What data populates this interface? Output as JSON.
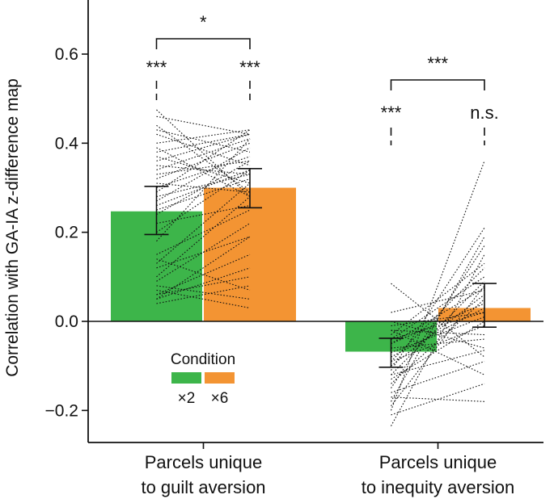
{
  "chart_data": {
    "type": "bar",
    "ylabel": "Correlation with GA-IA z-difference map",
    "ylim": [
      -0.27,
      0.72
    ],
    "yticks": [
      -0.2,
      0.0,
      0.2,
      0.4,
      0.6
    ],
    "ytick_labels": [
      "−0.2",
      "0.0",
      "0.2",
      "0.4",
      "0.6"
    ],
    "categories": [
      {
        "line1": "Parcels unique",
        "line2": "to guilt aversion"
      },
      {
        "line1": "Parcels unique",
        "line2": "to inequity aversion"
      }
    ],
    "legend": {
      "title": "Condition",
      "placement": "bottom-center",
      "entries": [
        {
          "label": "×2",
          "color": "#3db54a"
        },
        {
          "label": "×6",
          "color": "#f39433"
        }
      ]
    },
    "series": [
      {
        "name": "×2",
        "color": "#3db54a",
        "values": [
          0.247,
          -0.068
        ],
        "err_low": [
          0.195,
          -0.103
        ],
        "err_high": [
          0.303,
          -0.038
        ]
      },
      {
        "name": "×6",
        "color": "#f39433",
        "values": [
          0.3,
          0.03
        ],
        "err_low": [
          0.255,
          -0.013
        ],
        "err_high": [
          0.343,
          0.085
        ]
      }
    ],
    "subject_lines": [
      [
        [
          0.475,
          0.28
        ],
        [
          0.46,
          0.42
        ],
        [
          0.44,
          0.29
        ],
        [
          0.43,
          0.38
        ],
        [
          0.42,
          0.35
        ],
        [
          0.4,
          0.43
        ],
        [
          0.39,
          0.28
        ],
        [
          0.38,
          0.42
        ],
        [
          0.37,
          0.31
        ],
        [
          0.36,
          0.42
        ],
        [
          0.35,
          0.33
        ],
        [
          0.34,
          0.41
        ],
        [
          0.33,
          0.36
        ],
        [
          0.32,
          0.4
        ],
        [
          0.31,
          0.29
        ],
        [
          0.3,
          0.37
        ],
        [
          0.29,
          0.43
        ],
        [
          0.28,
          0.33
        ],
        [
          0.27,
          0.39
        ],
        [
          0.26,
          0.34
        ],
        [
          0.25,
          0.32
        ],
        [
          0.24,
          0.36
        ],
        [
          0.22,
          0.26
        ],
        [
          0.2,
          0.34
        ],
        [
          0.18,
          0.41
        ],
        [
          0.15,
          0.25
        ],
        [
          0.13,
          0.31
        ],
        [
          0.12,
          0.19
        ],
        [
          0.1,
          0.28
        ],
        [
          0.09,
          0.22
        ],
        [
          0.08,
          0.05
        ],
        [
          0.07,
          0.03
        ],
        [
          0.06,
          0.15
        ],
        [
          0.05,
          0.12
        ],
        [
          0.05,
          0.19
        ],
        [
          0.06,
          0.1
        ],
        [
          0.14,
          0.07
        ],
        [
          0.04,
          0.08
        ]
      ],
      [
        [
          0.085,
          -0.08
        ],
        [
          0.02,
          0.07
        ],
        [
          0.0,
          -0.06
        ],
        [
          -0.01,
          0.02
        ],
        [
          -0.02,
          -0.12
        ],
        [
          -0.03,
          0.13
        ],
        [
          -0.04,
          0.1
        ],
        [
          -0.05,
          0.04
        ],
        [
          -0.06,
          -0.04
        ],
        [
          -0.07,
          0.01
        ],
        [
          -0.08,
          0.03
        ],
        [
          -0.09,
          0.12
        ],
        [
          -0.1,
          0.06
        ],
        [
          -0.11,
          0.21
        ],
        [
          -0.12,
          0.09
        ],
        [
          -0.13,
          0.0
        ],
        [
          -0.14,
          0.05
        ],
        [
          -0.15,
          0.17
        ],
        [
          -0.16,
          -0.09
        ],
        [
          -0.17,
          -0.18
        ],
        [
          -0.18,
          0.19
        ],
        [
          -0.19,
          0.08
        ],
        [
          -0.2,
          0.36
        ],
        [
          -0.21,
          -0.14
        ],
        [
          -0.235,
          0.15
        ],
        [
          -0.05,
          0.075
        ],
        [
          -0.09,
          -0.01
        ],
        [
          -0.12,
          -0.065
        ],
        [
          -0.04,
          0.02
        ],
        [
          -0.02,
          -0.03
        ]
      ]
    ],
    "significance": [
      {
        "label": "*",
        "from_series": 0,
        "to_series": 1,
        "category": 0,
        "type": "bracket"
      },
      {
        "label": "***",
        "series": 0,
        "category": 0,
        "type": "dashed"
      },
      {
        "label": "***",
        "series": 1,
        "category": 0,
        "type": "dashed"
      },
      {
        "label": "***",
        "from_series": 0,
        "to_series": 1,
        "category": 1,
        "type": "bracket"
      },
      {
        "label": "***",
        "series": 0,
        "category": 1,
        "type": "dashed"
      },
      {
        "label": "n.s.",
        "series": 1,
        "category": 1,
        "type": "dashed"
      }
    ],
    "grid": false
  }
}
